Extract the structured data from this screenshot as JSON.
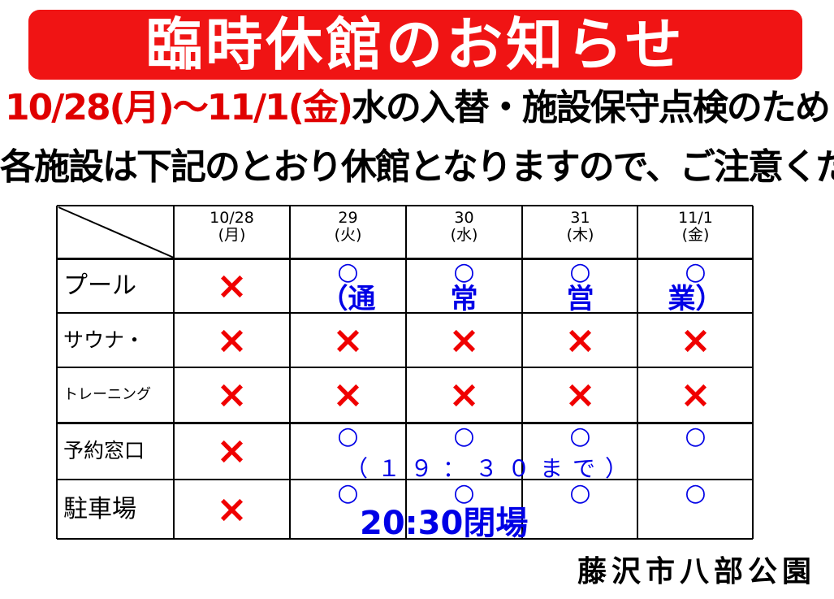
{
  "title": "臨時休館のお知らせ",
  "notice": {
    "dates": "10/28(月)～11/1(金)",
    "reason": "水の入替・施設保守点検のため",
    "line2": "各施設は下記のとおり休館となりますので、ご注意ください。"
  },
  "colors": {
    "banner": "#f01414",
    "closed": "#f00000",
    "open": "#0000e6"
  },
  "table": {
    "columns": [
      {
        "date": "10/28",
        "day": "(月)"
      },
      {
        "date": "29",
        "day": "(火)"
      },
      {
        "date": "30",
        "day": "(水)"
      },
      {
        "date": "31",
        "day": "(木)"
      },
      {
        "date": "11/1",
        "day": "(金)"
      }
    ],
    "rows": [
      {
        "label": "プール",
        "marks": [
          "×",
          "○",
          "○",
          "○",
          "○"
        ],
        "note": [
          "（通",
          "常",
          "営",
          "業）"
        ]
      },
      {
        "label": "サウナ・",
        "marks": [
          "×",
          "×",
          "×",
          "×",
          "×"
        ]
      },
      {
        "label": "トレーニング",
        "marks": [
          "×",
          "×",
          "×",
          "×",
          "×"
        ]
      },
      {
        "label": "予約窓口",
        "marks": [
          "×",
          "○",
          "○",
          "○",
          "○"
        ],
        "note": "（１９：３０まで）"
      },
      {
        "label": "駐車場",
        "marks": [
          "×",
          "○",
          "○",
          "○",
          "○"
        ],
        "note": "20:30閉場"
      }
    ]
  },
  "footer": "藤沢市八部公園"
}
